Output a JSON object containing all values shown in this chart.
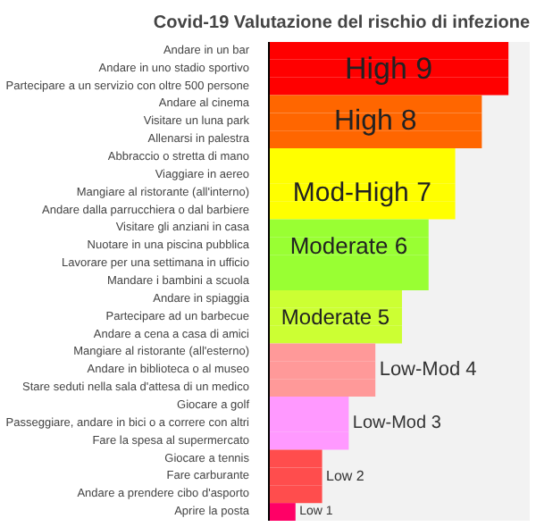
{
  "chart_data": {
    "type": "bar",
    "orientation": "horizontal",
    "title": "Covid-19 Valutazione del rischio di infezione",
    "categories": [
      "Andare in un bar",
      "Andare in uno stadio sportivo",
      "Partecipare a un servizio con oltre 500 persone",
      "Andare al cinema",
      "Visitare un luna park",
      "Allenarsi in palestra",
      "Abbraccio o stretta di mano",
      "Viaggiare in aereo",
      "Mangiare al ristorante (all'interno)",
      "Andare dalla parrucchiera o dal barbiere",
      "Visitare gli anziani in casa",
      "Nuotare in una piscina pubblica",
      "Lavorare per una settimana in ufficio",
      "Mandare i bambini a scuola",
      "Andare in spiaggia",
      "Partecipare ad un barbecue",
      "Andare a cena a casa di amici",
      "Mangiare al ristorante (all'esterno)",
      "Andare in biblioteca o al museo",
      "Stare seduti nella sala d'attesa di un medico",
      "Giocare a golf",
      "Passeggiare, andare in bici o a correre con altri",
      "Fare la spesa al supermercato",
      "Giocare a tennis",
      "Fare carburante",
      "Andare a prendere cibo d'asporto",
      "Aprire la posta"
    ],
    "values": [
      9,
      9,
      9,
      8,
      8,
      8,
      7,
      7,
      7,
      7,
      6,
      6,
      6,
      6,
      5,
      5,
      5,
      4,
      4,
      4,
      3,
      3,
      3,
      2,
      2,
      2,
      1
    ],
    "value_labels": [
      null,
      "High 9",
      null,
      null,
      "High 8",
      null,
      null,
      null,
      "Mod-High 7",
      null,
      null,
      "Moderate 6",
      null,
      null,
      null,
      "Moderate 5",
      null,
      null,
      "Low-Mod 4",
      null,
      null,
      "Low-Mod 3",
      null,
      null,
      "Low 2",
      null,
      "Low 1"
    ],
    "colors": [
      "#ff0000",
      "#ff0000",
      "#ff0000",
      "#ff6600",
      "#ff6600",
      "#ff6600",
      "#ffff00",
      "#ffff00",
      "#ffff00",
      "#ffff00",
      "#99ff33",
      "#99ff33",
      "#99ff33",
      "#99ff33",
      "#ccff33",
      "#ccff33",
      "#ccff33",
      "#ff9999",
      "#ff9999",
      "#ff9999",
      "#ff99ff",
      "#ff99ff",
      "#ff99ff",
      "#ff4d4d",
      "#ff4d4d",
      "#ff4d4d",
      "#ff0066"
    ],
    "xlim": [
      0,
      9.8
    ],
    "tick_labels": "y",
    "grid": false
  }
}
